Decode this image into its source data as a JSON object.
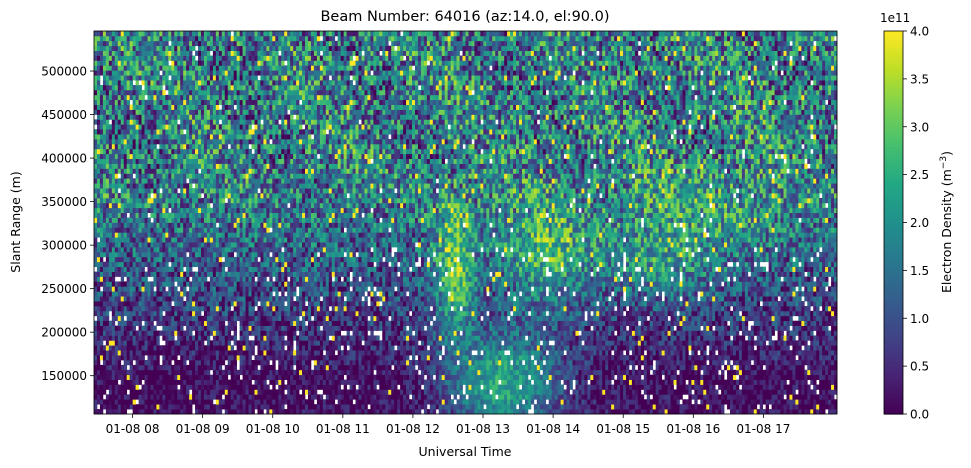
{
  "chart_data": {
    "type": "heatmap",
    "title": "Beam Number: 64016 (az:14.0, el:90.0)",
    "xlabel": "Universal Time",
    "ylabel": "Slant Range (m)",
    "x_tick_labels": [
      "01-08 08",
      "01-08 09",
      "01-08 10",
      "01-08 11",
      "01-08 12",
      "01-08 13",
      "01-08 14",
      "01-08 15",
      "01-08 16",
      "01-08 17"
    ],
    "x_range_hours": [
      7.45,
      18.05
    ],
    "y_ticks": [
      150000,
      200000,
      250000,
      300000,
      350000,
      400000,
      450000,
      500000
    ],
    "y_tick_labels": [
      "150000",
      "200000",
      "250000",
      "300000",
      "350000",
      "400000",
      "450000",
      "500000"
    ],
    "ylim": [
      106000,
      546000
    ],
    "colorbar": {
      "label_main": "Electron Density (m",
      "label_sup": "−3",
      "label_end": ")",
      "multiplier": "1e11",
      "ticks": [
        0.0,
        0.5,
        1.0,
        1.5,
        2.0,
        2.5,
        3.0,
        3.5,
        4.0
      ],
      "tick_labels": [
        "0.0",
        "0.5",
        "1.0",
        "1.5",
        "2.0",
        "2.5",
        "3.0",
        "3.5",
        "4.0"
      ],
      "range": [
        0,
        4
      ],
      "colormap": "viridis"
    },
    "features": [
      {
        "description": "enhanced electron density at low range",
        "time_hours": [
          12.5,
          14.3
        ],
        "range_m": [
          110000,
          200000
        ],
        "value_e11": 2.5
      },
      {
        "description": "enhanced structure",
        "time_hours": [
          12.4,
          12.8
        ],
        "range_m": [
          200000,
          330000
        ],
        "value_e11": 3.0
      },
      {
        "description": "enhanced structure",
        "time_hours": [
          13.3,
          14.6
        ],
        "range_m": [
          250000,
          340000
        ],
        "value_e11": 2.8
      }
    ],
    "grid": false
  }
}
